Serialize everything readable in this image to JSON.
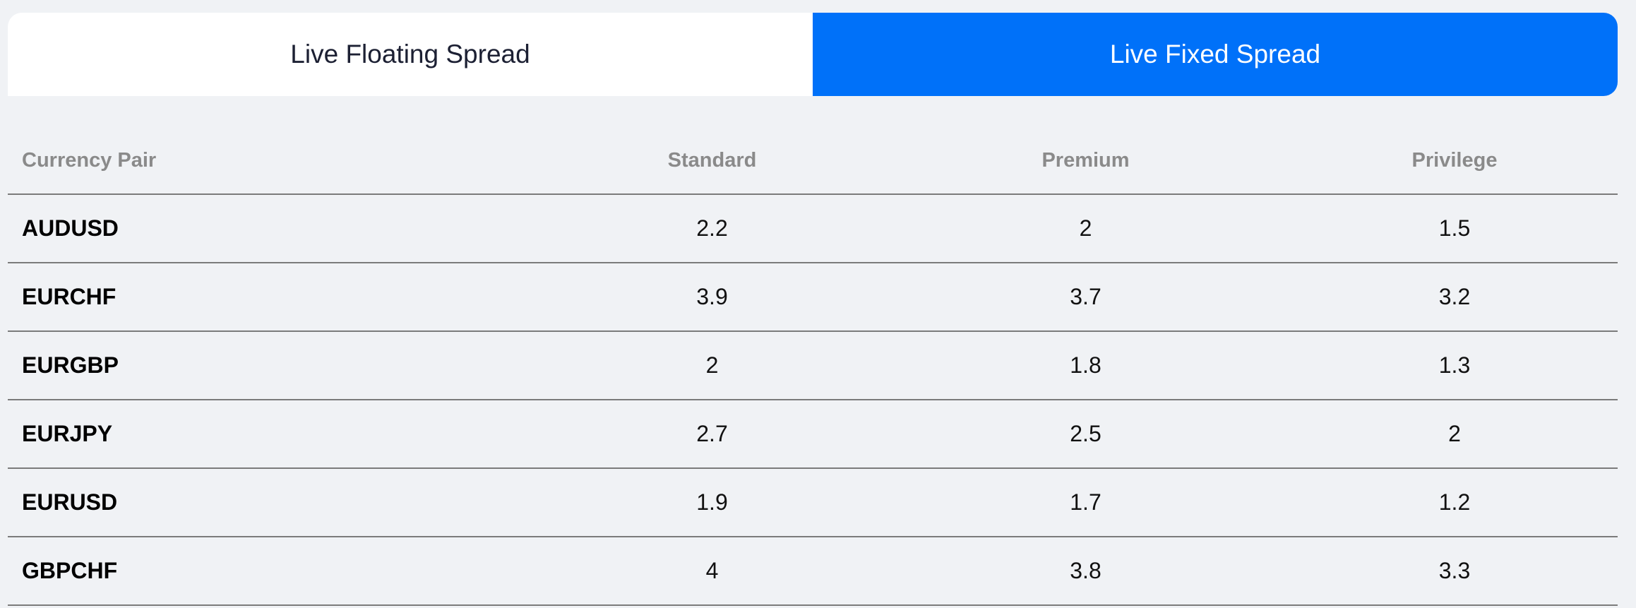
{
  "tabs": [
    {
      "label": "Live Floating Spread",
      "active": false
    },
    {
      "label": "Live Fixed Spread",
      "active": true
    }
  ],
  "colors": {
    "active_tab": "#0071f9",
    "inactive_tab": "#ffffff",
    "page_background": "#f0f2f5"
  },
  "table": {
    "headers": [
      "Currency Pair",
      "Standard",
      "Premium",
      "Privilege"
    ],
    "rows": [
      [
        "AUDUSD",
        "2.2",
        "2",
        "1.5"
      ],
      [
        "EURCHF",
        "3.9",
        "3.7",
        "3.2"
      ],
      [
        "EURGBP",
        "2",
        "1.8",
        "1.3"
      ],
      [
        "EURJPY",
        "2.7",
        "2.5",
        "2"
      ],
      [
        "EURUSD",
        "1.9",
        "1.7",
        "1.2"
      ],
      [
        "GBPCHF",
        "4",
        "3.8",
        "3.3"
      ]
    ]
  }
}
